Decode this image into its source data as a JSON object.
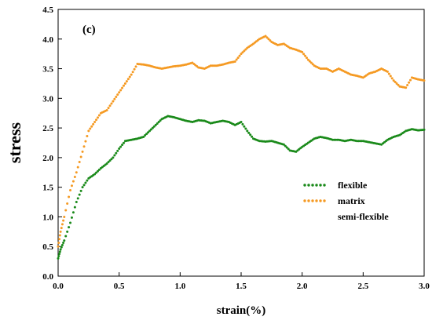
{
  "chart_data": {
    "type": "line",
    "panel_label": "(c)",
    "xlabel": "strain(%)",
    "ylabel": "stress",
    "xlim": [
      0,
      3.0
    ],
    "ylim": [
      0,
      4.5
    ],
    "x_ticks": [
      0.0,
      0.5,
      1.0,
      1.5,
      2.0,
      2.5,
      3.0
    ],
    "x_tick_labels": [
      "0.0",
      "0.5",
      "1.0",
      "1.5",
      "2.0",
      "2.5",
      "3.0"
    ],
    "y_ticks": [
      0.0,
      0.5,
      1.0,
      1.5,
      2.0,
      2.5,
      3.0,
      3.5,
      4.0,
      4.5
    ],
    "y_tick_labels": [
      "0.0",
      "0.5",
      "1.0",
      "1.5",
      "2.0",
      "2.5",
      "3.0",
      "3.5",
      "4.0",
      "4.5"
    ],
    "grid": false,
    "legend_position": "right-middle",
    "series": [
      {
        "name": "flexible",
        "color": "#1a8a1a",
        "style": "dotted",
        "x": [
          0.0,
          0.02,
          0.05,
          0.1,
          0.15,
          0.2,
          0.25,
          0.3,
          0.35,
          0.4,
          0.45,
          0.5,
          0.55,
          0.6,
          0.65,
          0.7,
          0.75,
          0.8,
          0.85,
          0.9,
          0.95,
          1.0,
          1.05,
          1.1,
          1.15,
          1.2,
          1.25,
          1.3,
          1.35,
          1.4,
          1.45,
          1.5,
          1.55,
          1.6,
          1.65,
          1.7,
          1.75,
          1.8,
          1.85,
          1.9,
          1.95,
          2.0,
          2.05,
          2.1,
          2.15,
          2.2,
          2.25,
          2.3,
          2.35,
          2.4,
          2.45,
          2.5,
          2.55,
          2.6,
          2.65,
          2.7,
          2.75,
          2.8,
          2.85,
          2.9,
          2.95,
          3.0
        ],
        "y": [
          0.3,
          0.45,
          0.6,
          0.9,
          1.25,
          1.5,
          1.65,
          1.72,
          1.82,
          1.9,
          2.0,
          2.15,
          2.28,
          2.3,
          2.32,
          2.35,
          2.45,
          2.55,
          2.65,
          2.7,
          2.68,
          2.65,
          2.62,
          2.6,
          2.63,
          2.62,
          2.58,
          2.6,
          2.62,
          2.6,
          2.55,
          2.6,
          2.45,
          2.32,
          2.28,
          2.27,
          2.28,
          2.25,
          2.22,
          2.12,
          2.1,
          2.18,
          2.25,
          2.32,
          2.35,
          2.33,
          2.3,
          2.3,
          2.28,
          2.3,
          2.28,
          2.28,
          2.26,
          2.24,
          2.22,
          2.3,
          2.35,
          2.38,
          2.45,
          2.48,
          2.46,
          2.47
        ]
      },
      {
        "name": "matrix",
        "color": "#f59a23",
        "style": "dotted",
        "x": [
          0.0,
          0.02,
          0.05,
          0.1,
          0.15,
          0.2,
          0.25,
          0.3,
          0.35,
          0.4,
          0.45,
          0.5,
          0.55,
          0.6,
          0.65,
          0.7,
          0.75,
          0.8,
          0.85,
          0.9,
          0.95,
          1.0,
          1.05,
          1.1,
          1.15,
          1.2,
          1.25,
          1.3,
          1.35,
          1.4,
          1.45,
          1.5,
          1.55,
          1.6,
          1.65,
          1.7,
          1.75,
          1.8,
          1.85,
          1.9,
          1.95,
          2.0,
          2.05,
          2.1,
          2.15,
          2.2,
          2.25,
          2.3,
          2.35,
          2.4,
          2.45,
          2.5,
          2.55,
          2.6,
          2.65,
          2.7,
          2.75,
          2.8,
          2.85,
          2.9,
          2.95,
          3.0
        ],
        "y": [
          0.5,
          0.75,
          1.0,
          1.45,
          1.75,
          2.1,
          2.45,
          2.6,
          2.75,
          2.8,
          2.95,
          3.1,
          3.25,
          3.4,
          3.58,
          3.57,
          3.55,
          3.52,
          3.5,
          3.52,
          3.54,
          3.55,
          3.57,
          3.6,
          3.52,
          3.5,
          3.55,
          3.55,
          3.57,
          3.6,
          3.62,
          3.75,
          3.85,
          3.92,
          4.0,
          4.05,
          3.95,
          3.9,
          3.92,
          3.85,
          3.82,
          3.78,
          3.65,
          3.55,
          3.5,
          3.5,
          3.45,
          3.5,
          3.45,
          3.4,
          3.38,
          3.35,
          3.42,
          3.45,
          3.5,
          3.45,
          3.3,
          3.2,
          3.18,
          3.35,
          3.32,
          3.3
        ]
      },
      {
        "name": "semi-flexible",
        "color": "#ffffff",
        "style": "none",
        "x": [],
        "y": []
      }
    ]
  }
}
